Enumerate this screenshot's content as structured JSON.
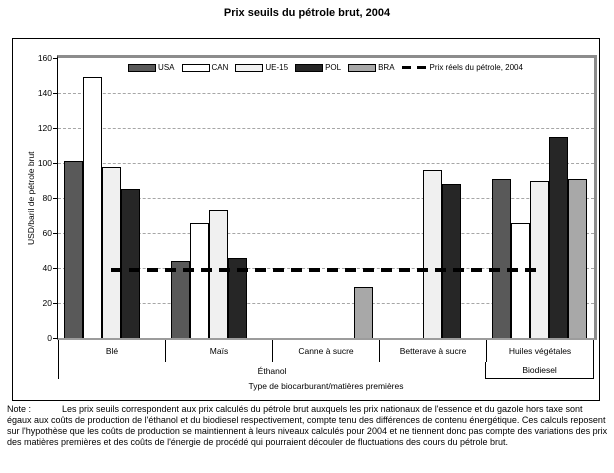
{
  "title": "Prix seuils du pétrole brut, 2004",
  "chart_data": {
    "type": "bar",
    "title": "Prix seuils du pétrole brut, 2004",
    "xlabel": "Type de biocarburant/matières premières",
    "ylabel": "USD/baril de pétrole brut",
    "ylim": [
      0,
      160
    ],
    "yticks": [
      0,
      20,
      40,
      60,
      80,
      100,
      120,
      140,
      160
    ],
    "grid": "horizontal-dashed",
    "legend_position": "top-center-inside",
    "categories": [
      "Blé",
      "Maïs",
      "Canne à sucre",
      "Betterave à sucre",
      "Huiles végétales"
    ],
    "group_labels": [
      {
        "label": "Éthanol",
        "cats": 4
      },
      {
        "label": "Biodiesel",
        "cats": 1
      }
    ],
    "series": [
      {
        "name": "USA",
        "color": "#595959",
        "values": [
          101,
          44,
          null,
          null,
          91
        ]
      },
      {
        "name": "CAN",
        "color": "#ffffff",
        "values": [
          149,
          66,
          null,
          null,
          66
        ]
      },
      {
        "name": "UE-15",
        "color": "#f0f0f0",
        "values": [
          98,
          73,
          null,
          96,
          90
        ]
      },
      {
        "name": "POL",
        "color": "#262626",
        "values": [
          85,
          46,
          null,
          88,
          115
        ]
      },
      {
        "name": "BRA",
        "color": "#a8a8a8",
        "values": [
          null,
          null,
          29,
          null,
          91
        ]
      }
    ],
    "line_series": {
      "name": "Prix réels du pétrole, 2004",
      "value": 39,
      "style": "dashed",
      "color": "#000000"
    }
  },
  "note": {
    "label": "Note :",
    "text": "Les prix seuils correspondent aux prix calculés du pétrole brut auxquels les prix nationaux de l'essence et du gazole hors taxe sont égaux aux coûts de production de l'éthanol et du biodiesel respectivement, compte tenu des différences de contenu énergétique. Ces calculs reposent sur l'hypothèse que les coûts de production se maintiennent à leurs niveaux calculés pour 2004 et ne tiennent donc pas compte des variations des prix des matières premières et des coûts de l'énergie de procédé qui pourraient découler de fluctuations des cours du pétrole brut."
  }
}
